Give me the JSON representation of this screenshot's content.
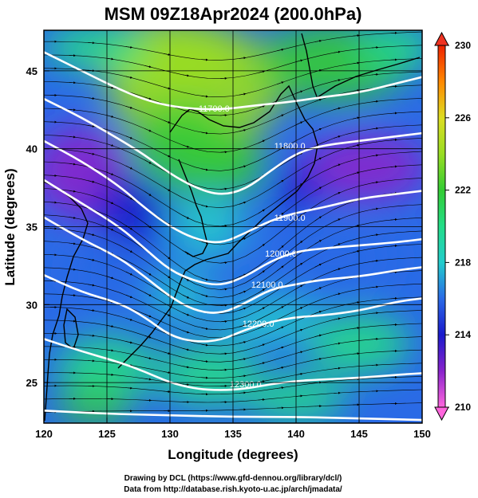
{
  "title": "MSM 09Z18Apr2024 (200.0hPa)",
  "credits": {
    "line1": "Drawing by DCL (https://www.gfd-dennou.org/library/dcl/)",
    "line2": "Data from http://database.rish.kyoto-u.ac.jp/arch/jmadata/"
  },
  "chart_data": {
    "type": "heatmap",
    "xlabel": "Longitude (degrees)",
    "ylabel": "Latitude  (degrees)",
    "xlim": [
      120,
      150
    ],
    "ylim": [
      22.4,
      47.6
    ],
    "x_ticks": [
      120,
      125,
      130,
      135,
      140,
      145,
      150
    ],
    "y_ticks": [
      25,
      30,
      35,
      40,
      45
    ],
    "grid": true,
    "colorbar": {
      "range": [
        210,
        230
      ],
      "ticks": [
        210,
        214,
        218,
        222,
        226,
        230
      ],
      "stops": [
        {
          "v": 210,
          "c": "#ff66dd"
        },
        {
          "v": 212,
          "c": "#8822cc"
        },
        {
          "v": 214,
          "c": "#1a1acc"
        },
        {
          "v": 216,
          "c": "#2a6ae6"
        },
        {
          "v": 218,
          "c": "#22cccc"
        },
        {
          "v": 220,
          "c": "#22dd88"
        },
        {
          "v": 222,
          "c": "#33cc33"
        },
        {
          "v": 224,
          "c": "#99dd22"
        },
        {
          "v": 226,
          "c": "#dddd22"
        },
        {
          "v": 228,
          "c": "#ff8800"
        },
        {
          "v": 230,
          "c": "#ee2200"
        }
      ]
    },
    "contours": [
      {
        "label": "11700.0",
        "label_pos": [
          133.5,
          42.6
        ],
        "points": [
          [
            120,
            46.2
          ],
          [
            123,
            45.0
          ],
          [
            126,
            43.8
          ],
          [
            128.5,
            43.0
          ],
          [
            131,
            42.6
          ],
          [
            134,
            42.5
          ],
          [
            137,
            42.8
          ],
          [
            139.5,
            43.0
          ],
          [
            142,
            43.3
          ],
          [
            145,
            43.6
          ],
          [
            148,
            44.2
          ],
          [
            150,
            44.6
          ]
        ]
      },
      {
        "label": "11800.0",
        "label_pos": [
          139.5,
          40.2
        ],
        "points": [
          [
            120,
            43.2
          ],
          [
            123,
            42.0
          ],
          [
            126,
            40.6
          ],
          [
            128,
            39.6
          ],
          [
            130,
            38.4
          ],
          [
            132,
            37.5
          ],
          [
            134,
            37.0
          ],
          [
            136,
            37.4
          ],
          [
            138,
            38.6
          ],
          [
            140,
            39.7
          ],
          [
            142,
            40.2
          ],
          [
            145,
            40.5
          ],
          [
            148,
            40.8
          ],
          [
            150,
            41.0
          ]
        ]
      },
      {
        "label": "11900.0",
        "label_pos": [
          139.5,
          35.6
        ],
        "points": [
          [
            120,
            40.5
          ],
          [
            123,
            39.2
          ],
          [
            126,
            37.6
          ],
          [
            128,
            36.2
          ],
          [
            130,
            35.0
          ],
          [
            132,
            34.2
          ],
          [
            134,
            33.9
          ],
          [
            136,
            34.6
          ],
          [
            138,
            35.4
          ],
          [
            140,
            35.9
          ],
          [
            142,
            36.2
          ],
          [
            145,
            36.8
          ],
          [
            148,
            37.1
          ],
          [
            150,
            37.3
          ]
        ]
      },
      {
        "label": "12000.0",
        "label_pos": [
          138.8,
          33.3
        ],
        "points": [
          [
            120,
            38.0
          ],
          [
            123,
            36.5
          ],
          [
            126,
            35.0
          ],
          [
            128,
            33.6
          ],
          [
            130,
            32.2
          ],
          [
            132,
            31.5
          ],
          [
            134,
            31.2
          ],
          [
            136,
            31.8
          ],
          [
            138,
            32.8
          ],
          [
            140,
            33.4
          ],
          [
            142,
            33.6
          ],
          [
            145,
            33.8
          ],
          [
            148,
            34.0
          ],
          [
            150,
            34.2
          ]
        ]
      },
      {
        "label": "12100.0",
        "label_pos": [
          137.7,
          31.3
        ],
        "points": [
          [
            120,
            35.6
          ],
          [
            123,
            34.2
          ],
          [
            126,
            33.0
          ],
          [
            128,
            31.8
          ],
          [
            130,
            30.5
          ],
          [
            132,
            29.6
          ],
          [
            134,
            29.4
          ],
          [
            136,
            30.1
          ],
          [
            138,
            31.0
          ],
          [
            140,
            31.3
          ],
          [
            142,
            31.6
          ],
          [
            145,
            31.8
          ],
          [
            148,
            32.2
          ],
          [
            150,
            32.4
          ]
        ]
      },
      {
        "label": "12200.0",
        "label_pos": [
          137.0,
          28.8
        ],
        "points": [
          [
            120,
            31.9
          ],
          [
            123,
            30.8
          ],
          [
            126,
            30.1
          ],
          [
            128,
            29.2
          ],
          [
            130,
            28.0
          ],
          [
            132,
            27.6
          ],
          [
            134,
            27.7
          ],
          [
            136,
            28.4
          ],
          [
            138,
            28.9
          ],
          [
            140,
            29.2
          ],
          [
            142,
            29.3
          ],
          [
            145,
            29.6
          ],
          [
            148,
            30.2
          ],
          [
            150,
            30.4
          ]
        ]
      },
      {
        "label": "12300.0",
        "label_pos": [
          136.0,
          24.9
        ],
        "points": [
          [
            120,
            27.8
          ],
          [
            123,
            27.0
          ],
          [
            126,
            26.3
          ],
          [
            128,
            25.7
          ],
          [
            130,
            25.0
          ],
          [
            132,
            24.6
          ],
          [
            134,
            24.5
          ],
          [
            136,
            24.6
          ],
          [
            138,
            24.9
          ],
          [
            140,
            25.1
          ],
          [
            142,
            25.2
          ],
          [
            145,
            25.3
          ],
          [
            148,
            25.5
          ],
          [
            150,
            25.6
          ]
        ]
      },
      {
        "label": "",
        "label_pos": [
          0,
          0
        ],
        "points": [
          [
            120,
            23.2
          ],
          [
            125,
            23.0
          ],
          [
            130,
            22.9
          ],
          [
            135,
            22.8
          ],
          [
            140,
            22.8
          ],
          [
            145,
            22.7
          ],
          [
            150,
            22.6
          ]
        ]
      }
    ]
  }
}
